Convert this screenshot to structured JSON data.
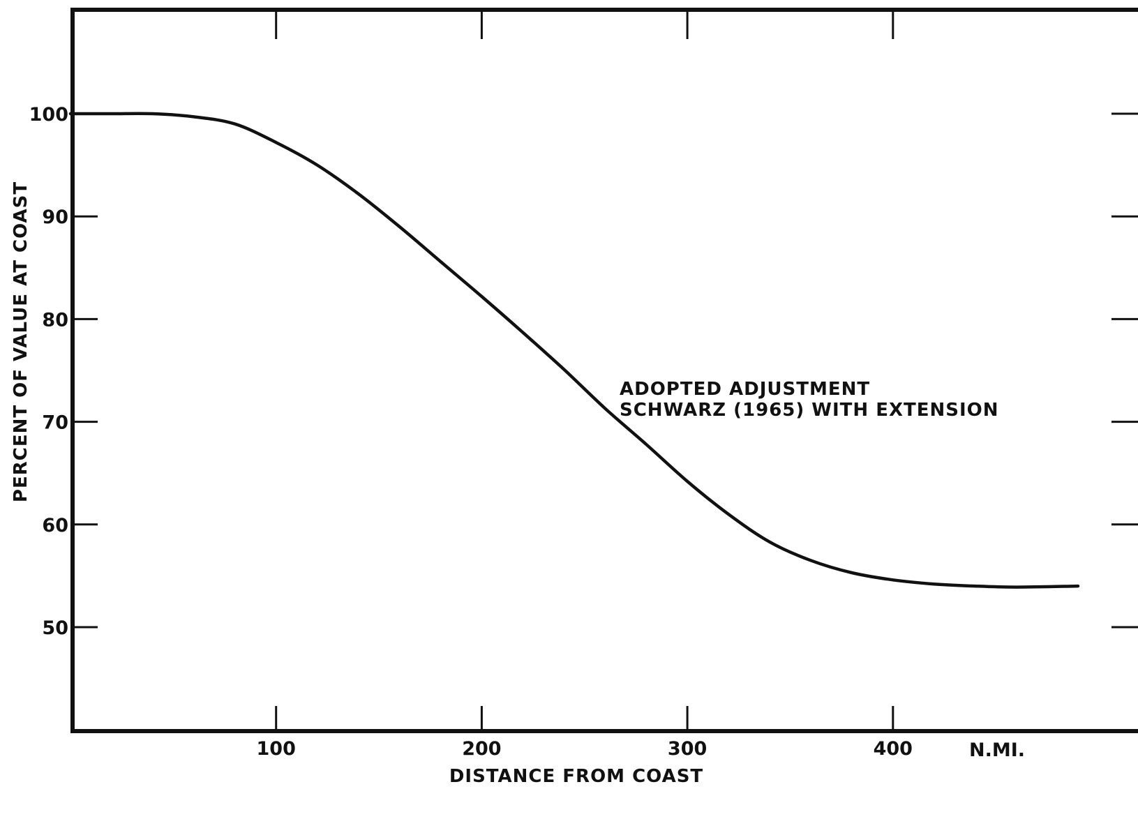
{
  "chart_data": {
    "type": "line",
    "title": "",
    "xlabel": "DISTANCE FROM COAST",
    "ylabel": "PERCENT OF VALUE AT COAST",
    "x_unit_label": "N.MI.",
    "xlim": [
      0,
      490
    ],
    "ylim": [
      40,
      107
    ],
    "x_ticks": [
      100,
      200,
      300,
      400
    ],
    "x_tick_labels": [
      "100",
      "200",
      "300",
      "400"
    ],
    "y_ticks": [
      50,
      60,
      70,
      80,
      90,
      100
    ],
    "y_tick_labels": [
      "50",
      "60",
      "70",
      "80",
      "90",
      "100"
    ],
    "grid": false,
    "annotations": [
      "ADOPTED ADJUSTMENT",
      "SCHWARZ (1965) WITH EXTENSION"
    ],
    "series": [
      {
        "x": [
          0,
          20,
          40,
          60,
          80,
          100,
          120,
          140,
          160,
          180,
          200,
          220,
          240,
          260,
          280,
          300,
          320,
          340,
          360,
          380,
          400,
          420,
          440,
          460,
          490
        ],
        "y": [
          100,
          100,
          100,
          99.7,
          99,
          97.2,
          95,
          92.2,
          89,
          85.6,
          82.2,
          78.7,
          75.1,
          71.3,
          67.8,
          64.2,
          61.0,
          58.3,
          56.5,
          55.3,
          54.6,
          54.2,
          54.0,
          53.9,
          54.0
        ]
      }
    ]
  }
}
